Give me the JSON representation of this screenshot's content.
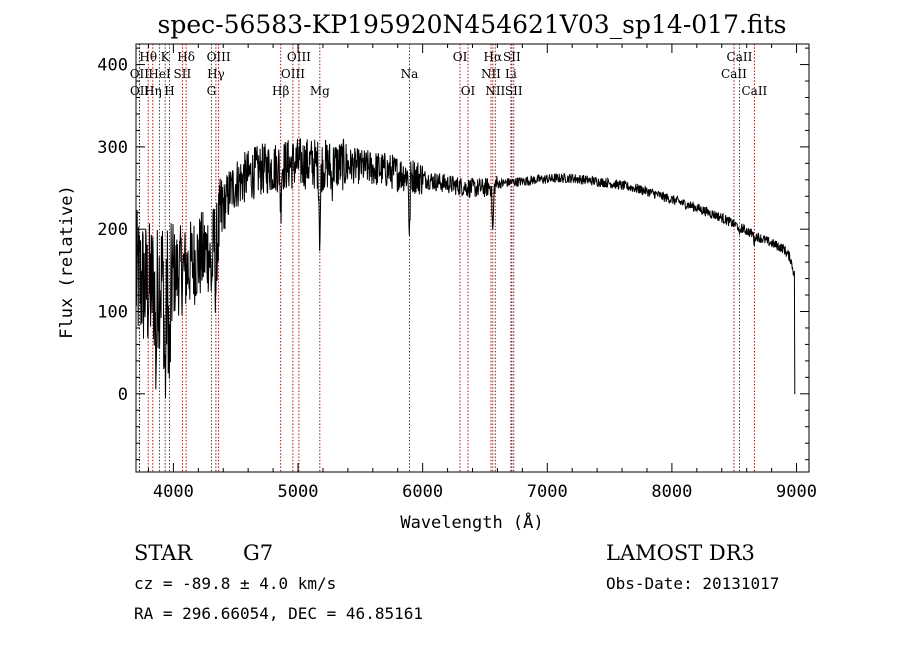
{
  "chart_data": {
    "type": "line",
    "title": "spec-56583-KP195920N454621V03_sp14-017.fits",
    "xlabel": "Wavelength (Å)",
    "ylabel": "Flux (relative)",
    "xlim": [
      3700,
      9100
    ],
    "ylim": [
      -95,
      425
    ],
    "xticks": [
      {
        "value": 4000,
        "label": "4000"
      },
      {
        "value": 5000,
        "label": "5000"
      },
      {
        "value": 6000,
        "label": "6000"
      },
      {
        "value": 7000,
        "label": "7000"
      },
      {
        "value": 8000,
        "label": "8000"
      },
      {
        "value": 9000,
        "label": "9000"
      }
    ],
    "yticks": [
      {
        "value": 0,
        "label": "0"
      },
      {
        "value": 100,
        "label": "100"
      },
      {
        "value": 200,
        "label": "200"
      },
      {
        "value": 300,
        "label": "300"
      },
      {
        "value": 400,
        "label": "400"
      }
    ],
    "line_color": "#8b0000",
    "spectrum_color": "#000000",
    "lines": [
      {
        "label": "OII",
        "wave": 3727,
        "row": 1
      },
      {
        "label": "OII",
        "wave": 3729,
        "row": 2
      },
      {
        "label": "Hθ",
        "wave": 3798,
        "row": 0
      },
      {
        "label": "HeI",
        "wave": 3889,
        "row": 1
      },
      {
        "label": "Hη",
        "wave": 3835,
        "row": 2
      },
      {
        "label": "K",
        "wave": 3934,
        "row": 0
      },
      {
        "label": "H",
        "wave": 3969,
        "row": 2
      },
      {
        "label": "SII",
        "wave": 4072,
        "row": 1
      },
      {
        "label": "Hδ",
        "wave": 4102,
        "row": 0
      },
      {
        "label": "G",
        "wave": 4305,
        "row": 2
      },
      {
        "label": "Hγ",
        "wave": 4341,
        "row": 1
      },
      {
        "label": "OIII",
        "wave": 4363,
        "row": 0
      },
      {
        "label": "Hβ",
        "wave": 4861,
        "row": 2
      },
      {
        "label": "OIII",
        "wave": 4959,
        "row": 1
      },
      {
        "label": "OIII",
        "wave": 5007,
        "row": 0
      },
      {
        "label": "Mg",
        "wave": 5175,
        "row": 2
      },
      {
        "label": "Na",
        "wave": 5894,
        "row": 1
      },
      {
        "label": "OI",
        "wave": 6300,
        "row": 0
      },
      {
        "label": "OI",
        "wave": 6364,
        "row": 2
      },
      {
        "label": "NII",
        "wave": 6548,
        "row": 1
      },
      {
        "label": "Hα",
        "wave": 6563,
        "row": 0
      },
      {
        "label": "NII",
        "wave": 6583,
        "row": 2
      },
      {
        "label": "Li",
        "wave": 6708,
        "row": 1
      },
      {
        "label": "SII",
        "wave": 6716,
        "row": 0
      },
      {
        "label": "SII",
        "wave": 6731,
        "row": 2
      },
      {
        "label": "CaII",
        "wave": 8498,
        "row": 1
      },
      {
        "label": "CaII",
        "wave": 8542,
        "row": 0
      },
      {
        "label": "CaII",
        "wave": 8662,
        "row": 2
      }
    ],
    "continuum": [
      [
        3700,
        140
      ],
      [
        3750,
        135
      ],
      [
        3800,
        125
      ],
      [
        3850,
        135
      ],
      [
        3900,
        140
      ],
      [
        3950,
        140
      ],
      [
        4000,
        145
      ],
      [
        4050,
        150
      ],
      [
        4100,
        150
      ],
      [
        4150,
        160
      ],
      [
        4200,
        165
      ],
      [
        4250,
        170
      ],
      [
        4300,
        180
      ],
      [
        4350,
        190
      ],
      [
        4400,
        225
      ],
      [
        4450,
        245
      ],
      [
        4500,
        255
      ],
      [
        4600,
        265
      ],
      [
        4700,
        272
      ],
      [
        4800,
        275
      ],
      [
        4900,
        278
      ],
      [
        5000,
        280
      ],
      [
        5100,
        280
      ],
      [
        5200,
        278
      ],
      [
        5300,
        278
      ],
      [
        5400,
        278
      ],
      [
        5500,
        276
      ],
      [
        5600,
        274
      ],
      [
        5700,
        272
      ],
      [
        5800,
        268
      ],
      [
        5900,
        266
      ],
      [
        6000,
        262
      ],
      [
        6100,
        258
      ],
      [
        6200,
        255
      ],
      [
        6300,
        252
      ],
      [
        6400,
        250
      ],
      [
        6500,
        250
      ],
      [
        6600,
        255
      ],
      [
        6700,
        257
      ],
      [
        6800,
        258
      ],
      [
        6900,
        260
      ],
      [
        7000,
        261
      ],
      [
        7100,
        262
      ],
      [
        7200,
        262
      ],
      [
        7300,
        260
      ],
      [
        7400,
        258
      ],
      [
        7500,
        256
      ],
      [
        7600,
        253
      ],
      [
        7700,
        250
      ],
      [
        7800,
        246
      ],
      [
        7900,
        241
      ],
      [
        8000,
        236
      ],
      [
        8100,
        231
      ],
      [
        8200,
        226
      ],
      [
        8300,
        220
      ],
      [
        8400,
        214
      ],
      [
        8500,
        206
      ],
      [
        8600,
        198
      ],
      [
        8700,
        190
      ],
      [
        8800,
        183
      ],
      [
        8900,
        176
      ],
      [
        8950,
        165
      ],
      [
        8990,
        140
      ]
    ],
    "absorption": [
      {
        "wave": 3934,
        "depth": 120,
        "width": 10
      },
      {
        "wave": 3969,
        "depth": 110,
        "width": 10
      },
      {
        "wave": 3860,
        "depth": 90,
        "width": 8
      },
      {
        "wave": 4305,
        "depth": 40,
        "width": 12
      },
      {
        "wave": 4340,
        "depth": 60,
        "width": 6
      },
      {
        "wave": 4861,
        "depth": 50,
        "width": 6
      },
      {
        "wave": 5175,
        "depth": 85,
        "width": 8
      },
      {
        "wave": 5270,
        "depth": 20,
        "width": 8
      },
      {
        "wave": 5894,
        "depth": 80,
        "width": 6
      },
      {
        "wave": 6563,
        "depth": 55,
        "width": 8
      },
      {
        "wave": 8542,
        "depth": 12,
        "width": 6
      },
      {
        "wave": 8662,
        "depth": 10,
        "width": 6
      }
    ]
  },
  "info": {
    "object_class": "STAR",
    "subclass": "G7",
    "survey": "LAMOST DR3",
    "redshift_line": "cz = -89.8 ± 4.0 km/s",
    "obs_date_line": "Obs-Date: 20131017",
    "coords_line": "RA = 296.66054, DEC =  46.85161"
  }
}
